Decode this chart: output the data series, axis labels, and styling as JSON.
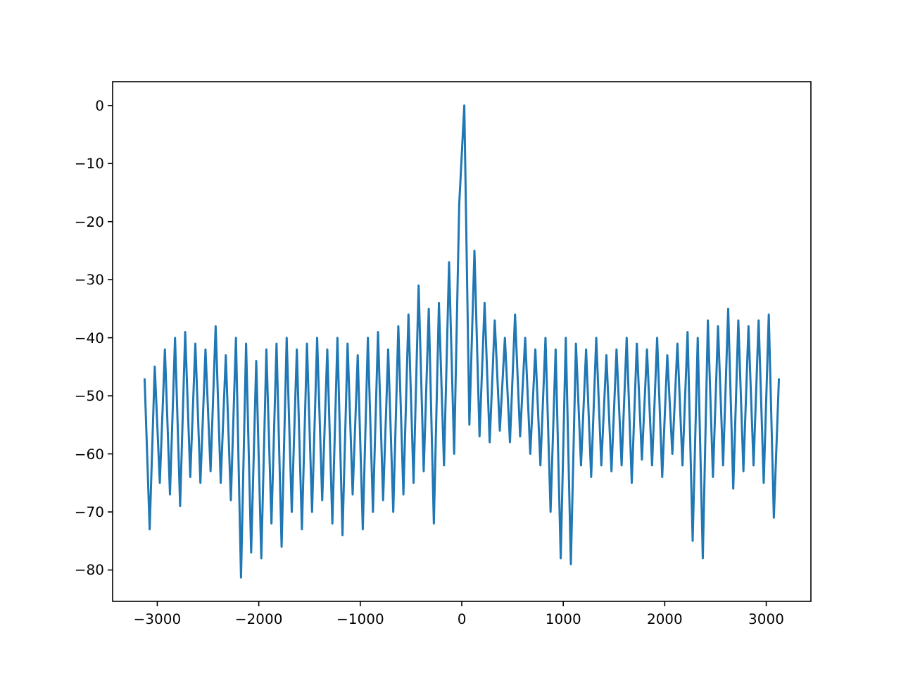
{
  "chart_data": {
    "type": "line",
    "xlim": [
      -3440,
      3440
    ],
    "ylim": [
      -85.4,
      4.1
    ],
    "xticks": [
      {
        "value": -3000,
        "label": "−3000"
      },
      {
        "value": -2000,
        "label": "−2000"
      },
      {
        "value": -1000,
        "label": "−1000"
      },
      0,
      1000,
      2000,
      3000
    ],
    "yticks": [
      {
        "value": -80,
        "label": "−80"
      },
      {
        "value": -70,
        "label": "−70"
      },
      {
        "value": -60,
        "label": "−60"
      },
      {
        "value": -50,
        "label": "−50"
      },
      {
        "value": -40,
        "label": "−40"
      },
      {
        "value": -30,
        "label": "−30"
      },
      {
        "value": -20,
        "label": "−20"
      },
      {
        "value": -10,
        "label": "−10"
      },
      0
    ],
    "grid": false,
    "marker": "none",
    "line_style": "solid",
    "series": [
      {
        "color": "#1f77b4",
        "x": [
          -3125,
          -3075,
          -3025,
          -2975,
          -2925,
          -2875,
          -2825,
          -2775,
          -2725,
          -2675,
          -2625,
          -2575,
          -2525,
          -2475,
          -2425,
          -2375,
          -2325,
          -2275,
          -2225,
          -2175,
          -2125,
          -2075,
          -2025,
          -1975,
          -1925,
          -1875,
          -1825,
          -1775,
          -1725,
          -1675,
          -1625,
          -1575,
          -1525,
          -1475,
          -1425,
          -1375,
          -1325,
          -1275,
          -1225,
          -1175,
          -1125,
          -1075,
          -1025,
          -975,
          -925,
          -875,
          -825,
          -775,
          -725,
          -675,
          -625,
          -575,
          -525,
          -475,
          -425,
          -375,
          -325,
          -275,
          -225,
          -175,
          -125,
          -75,
          -25,
          25,
          75,
          125,
          175,
          225,
          275,
          325,
          375,
          425,
          475,
          525,
          575,
          625,
          675,
          725,
          775,
          825,
          875,
          925,
          975,
          1025,
          1075,
          1125,
          1175,
          1225,
          1275,
          1325,
          1375,
          1425,
          1475,
          1525,
          1575,
          1625,
          1675,
          1725,
          1775,
          1825,
          1875,
          1925,
          1975,
          2025,
          2075,
          2125,
          2175,
          2225,
          2275,
          2325,
          2375,
          2425,
          2475,
          2525,
          2575,
          2625,
          2675,
          2725,
          2775,
          2825,
          2875,
          2925,
          2975,
          3025,
          3075,
          3125
        ],
        "values": [
          -47,
          -73,
          -45,
          -65,
          -42,
          -67,
          -40,
          -69,
          -39,
          -64,
          -41,
          -65,
          -42,
          -63,
          -38,
          -65,
          -43,
          -68,
          -40,
          -81.3,
          -41,
          -77,
          -44,
          -78,
          -42,
          -72,
          -41,
          -76,
          -40,
          -70,
          -42,
          -73,
          -41,
          -70,
          -40,
          -68,
          -42,
          -72,
          -40,
          -74,
          -41,
          -67,
          -43,
          -73,
          -40,
          -70,
          -39,
          -68,
          -42,
          -70,
          -38,
          -67,
          -36,
          -65,
          -31,
          -63,
          -35,
          -72,
          -34,
          -62,
          -27,
          -60,
          -17,
          0,
          -55,
          -25,
          -57,
          -34,
          -58,
          -37,
          -56,
          -40,
          -58,
          -36,
          -57,
          -40,
          -60,
          -42,
          -62,
          -40,
          -70,
          -42,
          -78,
          -40,
          -79,
          -41,
          -62,
          -42,
          -64,
          -40,
          -62,
          -43,
          -63,
          -42,
          -62,
          -40,
          -65,
          -41,
          -61,
          -42,
          -62,
          -40,
          -64,
          -43,
          -60,
          -41,
          -62,
          -39,
          -75,
          -40,
          -78,
          -37,
          -64,
          -38,
          -62,
          -35,
          -66,
          -37,
          -63,
          -38,
          -62,
          -37,
          -65,
          -36,
          -71,
          -47
        ]
      }
    ]
  }
}
